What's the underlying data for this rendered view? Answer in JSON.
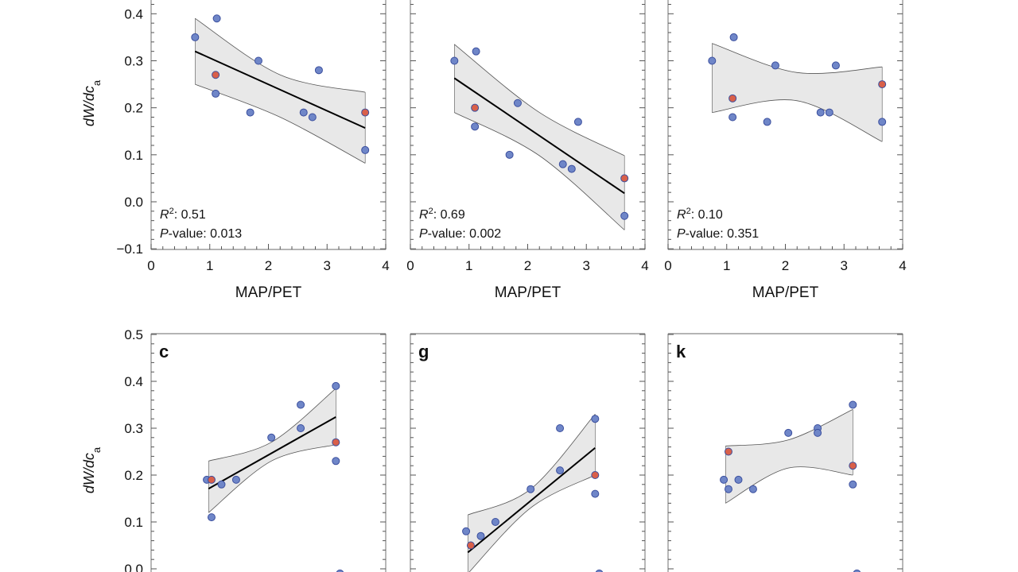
{
  "colors": {
    "point_fill": "#6f86c8",
    "point_fill_highlight": "#d9604a",
    "point_stroke": "#3b4f9e",
    "band_fill": "#e8e8e8",
    "band_edge": "#555555",
    "fit_line": "#000000",
    "frame": "#888888"
  },
  "chart_data": [
    {
      "type": "scatter",
      "panel_label": "",
      "row": 0,
      "col": 0,
      "xlabel": "MAP/PET",
      "ylabel": "dW/dc_a",
      "xlim": [
        0,
        4
      ],
      "ylim": [
        -0.1,
        0.5
      ],
      "xticks": [
        "0",
        "1",
        "2",
        "3",
        "4"
      ],
      "yticks": [
        "−0.1",
        "0.0",
        "0.1",
        "0.2",
        "0.3",
        "0.4"
      ],
      "points": [
        {
          "x": 0.75,
          "y": 0.35,
          "highlight": false
        },
        {
          "x": 1.12,
          "y": 0.39,
          "highlight": false
        },
        {
          "x": 1.1,
          "y": 0.27,
          "highlight": true
        },
        {
          "x": 1.1,
          "y": 0.23,
          "highlight": false
        },
        {
          "x": 1.69,
          "y": 0.19,
          "highlight": false
        },
        {
          "x": 1.83,
          "y": 0.3,
          "highlight": false
        },
        {
          "x": 2.6,
          "y": 0.19,
          "highlight": false
        },
        {
          "x": 2.75,
          "y": 0.18,
          "highlight": false
        },
        {
          "x": 2.86,
          "y": 0.28,
          "highlight": false
        },
        {
          "x": 3.65,
          "y": 0.19,
          "highlight": true
        },
        {
          "x": 3.65,
          "y": 0.11,
          "highlight": false
        }
      ],
      "fit": {
        "x0": 0.75,
        "y0": 0.32,
        "x1": 3.65,
        "y1": 0.157
      },
      "band": {
        "x": [
          0.75,
          2.2,
          3.65
        ],
        "upper": [
          0.39,
          0.27,
          0.233
        ],
        "lower": [
          0.25,
          0.18,
          0.082
        ]
      },
      "r2_label": "R",
      "r2_sup": "2",
      "r2_value": ": 0.51",
      "p_label": "P",
      "p_value": "-value: 0.013"
    },
    {
      "type": "scatter",
      "panel_label": "",
      "row": 0,
      "col": 1,
      "xlabel": "MAP/PET",
      "ylabel": "",
      "xlim": [
        0,
        4
      ],
      "ylim": [
        -0.1,
        0.5
      ],
      "xticks": [
        "0",
        "1",
        "2",
        "3",
        "4"
      ],
      "yticks": [],
      "points": [
        {
          "x": 0.75,
          "y": 0.3,
          "highlight": false
        },
        {
          "x": 1.12,
          "y": 0.32,
          "highlight": false
        },
        {
          "x": 1.1,
          "y": 0.2,
          "highlight": true
        },
        {
          "x": 1.1,
          "y": 0.16,
          "highlight": false
        },
        {
          "x": 1.69,
          "y": 0.1,
          "highlight": false
        },
        {
          "x": 1.83,
          "y": 0.21,
          "highlight": false
        },
        {
          "x": 2.6,
          "y": 0.08,
          "highlight": false
        },
        {
          "x": 2.75,
          "y": 0.07,
          "highlight": false
        },
        {
          "x": 2.86,
          "y": 0.17,
          "highlight": false
        },
        {
          "x": 3.65,
          "y": 0.05,
          "highlight": true
        },
        {
          "x": 3.65,
          "y": -0.03,
          "highlight": false
        }
      ],
      "fit": {
        "x0": 0.75,
        "y0": 0.263,
        "x1": 3.65,
        "y1": 0.018
      },
      "band": {
        "x": [
          0.75,
          2.2,
          3.65
        ],
        "upper": [
          0.335,
          0.19,
          0.098
        ],
        "lower": [
          0.19,
          0.098,
          -0.06
        ]
      },
      "r2_label": "R",
      "r2_sup": "2",
      "r2_value": ": 0.69",
      "p_label": "P",
      "p_value": "-value: 0.002"
    },
    {
      "type": "scatter",
      "panel_label": "",
      "row": 0,
      "col": 2,
      "xlabel": "MAP/PET",
      "ylabel": "",
      "xlim": [
        0,
        4
      ],
      "ylim": [
        -0.1,
        0.5
      ],
      "xticks": [
        "0",
        "1",
        "2",
        "3",
        "4"
      ],
      "yticks": [],
      "points": [
        {
          "x": 0.75,
          "y": 0.3,
          "highlight": false
        },
        {
          "x": 1.12,
          "y": 0.35,
          "highlight": false
        },
        {
          "x": 1.1,
          "y": 0.22,
          "highlight": true
        },
        {
          "x": 1.1,
          "y": 0.18,
          "highlight": false
        },
        {
          "x": 1.69,
          "y": 0.17,
          "highlight": false
        },
        {
          "x": 1.83,
          "y": 0.29,
          "highlight": false
        },
        {
          "x": 2.6,
          "y": 0.19,
          "highlight": false
        },
        {
          "x": 2.75,
          "y": 0.19,
          "highlight": false
        },
        {
          "x": 2.86,
          "y": 0.29,
          "highlight": false
        },
        {
          "x": 3.65,
          "y": 0.25,
          "highlight": true
        },
        {
          "x": 3.65,
          "y": 0.17,
          "highlight": false
        }
      ],
      "fit": null,
      "band": {
        "x": [
          0.75,
          2.2,
          3.65
        ],
        "upper": [
          0.337,
          0.275,
          0.287
        ],
        "lower": [
          0.19,
          0.215,
          0.128
        ]
      },
      "r2_label": "R",
      "r2_sup": "2",
      "r2_value": ": 0.10",
      "p_label": "P",
      "p_value": "-value: 0.351"
    },
    {
      "type": "scatter",
      "panel_label": "c",
      "row": 1,
      "col": 0,
      "xlabel": "",
      "ylabel": "dW/dc_a",
      "xlim": [
        0,
        4
      ],
      "ylim": [
        -0.1,
        0.5
      ],
      "xticks": [],
      "yticks": [
        "0.0",
        "0.1",
        "0.2",
        "0.3",
        "0.4",
        "0.5"
      ],
      "points": [
        {
          "x": 0.95,
          "y": 0.19,
          "highlight": false
        },
        {
          "x": 1.03,
          "y": 0.19,
          "highlight": true
        },
        {
          "x": 1.03,
          "y": 0.11,
          "highlight": false
        },
        {
          "x": 1.2,
          "y": 0.18,
          "highlight": false
        },
        {
          "x": 1.45,
          "y": 0.19,
          "highlight": false
        },
        {
          "x": 2.05,
          "y": 0.28,
          "highlight": false
        },
        {
          "x": 2.55,
          "y": 0.35,
          "highlight": false
        },
        {
          "x": 2.55,
          "y": 0.3,
          "highlight": false
        },
        {
          "x": 3.15,
          "y": 0.39,
          "highlight": false
        },
        {
          "x": 3.15,
          "y": 0.27,
          "highlight": true
        },
        {
          "x": 3.15,
          "y": 0.23,
          "highlight": false
        },
        {
          "x": 3.22,
          "y": -0.01,
          "highlight": false
        }
      ],
      "fit": {
        "x0": 0.98,
        "y0": 0.171,
        "x1": 3.15,
        "y1": 0.324
      },
      "band": {
        "x": [
          0.98,
          2.05,
          3.15
        ],
        "upper": [
          0.23,
          0.27,
          0.385
        ],
        "lower": [
          0.12,
          0.23,
          0.265
        ]
      },
      "r2_label": "",
      "r2_sup": "",
      "r2_value": "",
      "p_label": "",
      "p_value": ""
    },
    {
      "type": "scatter",
      "panel_label": "g",
      "row": 1,
      "col": 1,
      "xlabel": "",
      "ylabel": "",
      "xlim": [
        0,
        4
      ],
      "ylim": [
        -0.1,
        0.5
      ],
      "xticks": [],
      "yticks": [],
      "points": [
        {
          "x": 0.95,
          "y": 0.08,
          "highlight": false
        },
        {
          "x": 1.03,
          "y": 0.05,
          "highlight": true
        },
        {
          "x": 1.2,
          "y": 0.07,
          "highlight": false
        },
        {
          "x": 1.45,
          "y": 0.1,
          "highlight": false
        },
        {
          "x": 2.05,
          "y": 0.17,
          "highlight": false
        },
        {
          "x": 2.55,
          "y": 0.3,
          "highlight": false
        },
        {
          "x": 2.55,
          "y": 0.21,
          "highlight": false
        },
        {
          "x": 3.15,
          "y": 0.32,
          "highlight": false
        },
        {
          "x": 3.15,
          "y": 0.2,
          "highlight": true
        },
        {
          "x": 3.15,
          "y": 0.16,
          "highlight": false
        },
        {
          "x": 3.22,
          "y": -0.01,
          "highlight": false
        }
      ],
      "fit": {
        "x0": 0.98,
        "y0": 0.035,
        "x1": 3.15,
        "y1": 0.258
      },
      "band": {
        "x": [
          0.98,
          2.05,
          3.15
        ],
        "upper": [
          0.115,
          0.17,
          0.33
        ],
        "lower": [
          -0.01,
          0.13,
          0.2
        ]
      },
      "r2_label": "",
      "r2_sup": "",
      "r2_value": "",
      "p_label": "",
      "p_value": ""
    },
    {
      "type": "scatter",
      "panel_label": "k",
      "row": 1,
      "col": 2,
      "xlabel": "",
      "ylabel": "",
      "xlim": [
        0,
        4
      ],
      "ylim": [
        -0.1,
        0.5
      ],
      "xticks": [],
      "yticks": [],
      "points": [
        {
          "x": 0.95,
          "y": 0.19,
          "highlight": false
        },
        {
          "x": 1.03,
          "y": 0.25,
          "highlight": true
        },
        {
          "x": 1.03,
          "y": 0.17,
          "highlight": false
        },
        {
          "x": 1.2,
          "y": 0.19,
          "highlight": false
        },
        {
          "x": 1.45,
          "y": 0.17,
          "highlight": false
        },
        {
          "x": 2.05,
          "y": 0.29,
          "highlight": false
        },
        {
          "x": 2.55,
          "y": 0.3,
          "highlight": false
        },
        {
          "x": 2.55,
          "y": 0.29,
          "highlight": false
        },
        {
          "x": 3.15,
          "y": 0.35,
          "highlight": false
        },
        {
          "x": 3.15,
          "y": 0.22,
          "highlight": true
        },
        {
          "x": 3.15,
          "y": 0.18,
          "highlight": false
        },
        {
          "x": 3.22,
          "y": -0.01,
          "highlight": false
        }
      ],
      "fit": null,
      "band": {
        "x": [
          0.98,
          2.05,
          3.15
        ],
        "upper": [
          0.262,
          0.275,
          0.34
        ],
        "lower": [
          0.14,
          0.215,
          0.2
        ]
      },
      "r2_label": "",
      "r2_sup": "",
      "r2_value": "",
      "p_label": "",
      "p_value": ""
    }
  ]
}
